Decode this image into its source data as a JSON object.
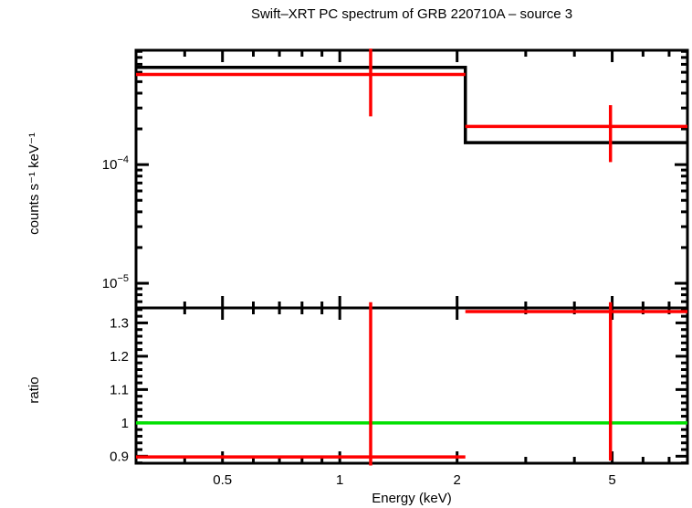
{
  "title": "Swift–XRT PC spectrum of GRB 220710A – source 3",
  "colors": {
    "frame": "#000000",
    "model": "#000000",
    "data": "#ff0000",
    "reference": "#00e000",
    "text": "#000000",
    "background": "#ffffff"
  },
  "chart_data": {
    "type": "line",
    "title": "Swift–XRT PC spectrum of GRB 220710A – source 3",
    "xlabel": "Energy (keV)",
    "x_axis": {
      "scale": "log",
      "range": [
        0.3,
        7.8
      ],
      "major_ticks": [
        0.5,
        1,
        2,
        5
      ],
      "major_tick_labels": [
        "0.5",
        "1",
        "2",
        "5"
      ],
      "minor_ticks": [
        0.4,
        0.6,
        0.7,
        0.8,
        0.9,
        3,
        4,
        6,
        7
      ]
    },
    "panels": [
      {
        "name": "spectrum",
        "ylabel": "counts s⁻¹ keV⁻¹",
        "y_axis": {
          "scale": "log",
          "range": [
            6.2e-06,
            0.00092
          ],
          "major_ticks": [
            1e-05,
            0.0001
          ],
          "major_tick_labels": [
            {
              "base": "10",
              "exp": "−5"
            },
            {
              "base": "10",
              "exp": "−4"
            }
          ]
        },
        "model": {
          "color": "#000000",
          "steps": [
            {
              "x_from": 0.3,
              "x_to": 2.1,
              "y": 0.00066
            },
            {
              "x_from": 2.1,
              "x_to": 7.8,
              "y": 0.000153
            }
          ]
        },
        "data": {
          "color": "#ff0000",
          "points": [
            {
              "x": 1.2,
              "x_from": 0.3,
              "x_to": 2.1,
              "y": 0.000575,
              "y_err_lo": 0.000255,
              "y_err_hi": 0.00095
            },
            {
              "x": 4.95,
              "x_from": 2.1,
              "x_to": 7.8,
              "y": 0.00021,
              "y_err_lo": 0.000105,
              "y_err_hi": 0.000317
            }
          ]
        }
      },
      {
        "name": "ratio",
        "ylabel": "ratio",
        "y_axis": {
          "scale": "linear",
          "range": [
            0.879,
            1.345
          ],
          "major_ticks": [
            0.9,
            1,
            1.1,
            1.2,
            1.3
          ],
          "major_tick_labels": [
            "0.9",
            "1",
            "1.1",
            "1.2",
            "1.3"
          ],
          "minor_tick_step": 0.02
        },
        "reference_line": {
          "y": 1,
          "color": "#00e000"
        },
        "data": {
          "color": "#ff0000",
          "points": [
            {
              "x": 1.2,
              "x_from": 0.3,
              "x_to": 2.1,
              "y": 0.898,
              "y_err_lo": 0.872,
              "y_err_hi": 1.362
            },
            {
              "x": 4.95,
              "x_from": 2.1,
              "x_to": 7.8,
              "y": 1.334,
              "y_err_lo": 0.887,
              "y_err_hi": 1.362
            }
          ]
        }
      }
    ]
  }
}
